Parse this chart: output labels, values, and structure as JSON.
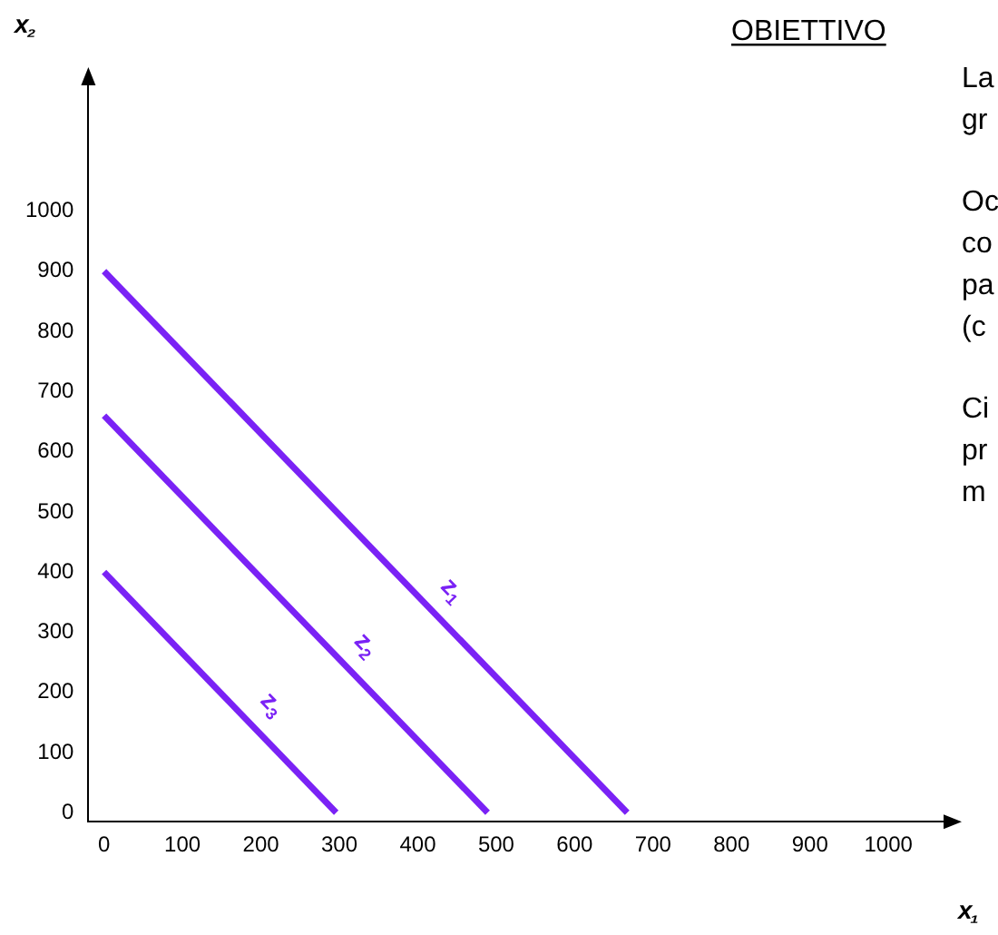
{
  "chart_data": {
    "type": "line",
    "title": "OBIETTIVO",
    "xlabel": "x₁",
    "ylabel": "x₂",
    "xlim": [
      -20,
      1075
    ],
    "ylim": [
      -15,
      1215
    ],
    "xticks": [
      0,
      100,
      200,
      300,
      400,
      500,
      600,
      700,
      800,
      900,
      1000
    ],
    "yticks": [
      0,
      100,
      200,
      300,
      400,
      500,
      600,
      700,
      800,
      900,
      1000
    ],
    "grid": false,
    "legend": false,
    "marker": "none",
    "line_style": "solid",
    "series": [
      {
        "name": "z$_{1}$",
        "color": "#7a22f5",
        "x": [
          0,
          667
        ],
        "values": [
          900,
          0
        ]
      },
      {
        "name": "z$_{2}$",
        "color": "#7a22f5",
        "x": [
          0,
          489
        ],
        "values": [
          660,
          0
        ]
      },
      {
        "name": "z$_{3}$",
        "color": "#7a22f5",
        "x": [
          0,
          296
        ],
        "values": [
          400,
          0
        ]
      }
    ],
    "annotations": [
      "La",
      "gr",
      "Oc",
      "co",
      "pa",
      "(c",
      "Ci",
      "pr",
      "m"
    ]
  }
}
